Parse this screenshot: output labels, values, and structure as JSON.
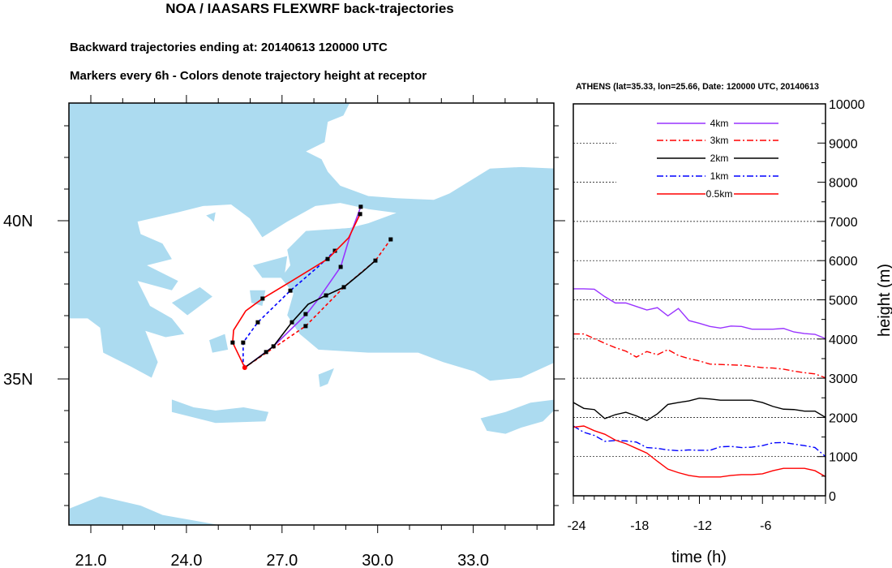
{
  "header": {
    "title": "NOA / IAASARS FLEXWRF back-trajectories",
    "subtitle1": "Backward trajectories ending at: 20140613  120000 UTC",
    "subtitle2": "Markers every 6h - Colors denote trajectory height at receptor"
  },
  "colors": {
    "land": "#acdbf0",
    "sea": "#ffffff",
    "h4km": "#9933ff",
    "h3km": "#ff0000",
    "h2km": "#000000",
    "h1km": "#0000ff",
    "h05km": "#ff0000"
  },
  "chart_data": [
    {
      "type": "map",
      "title": "Backward trajectories",
      "x_ticks": [
        "21.0",
        "24.0",
        "27.0",
        "30.0",
        "33.0"
      ],
      "x_tick_values": [
        21,
        24,
        27,
        30,
        33
      ],
      "y_ticks": [
        "35N",
        "40N"
      ],
      "y_tick_values": [
        35,
        40
      ],
      "xlim": [
        20.3,
        35.5
      ],
      "ylim": [
        30.4,
        43.7
      ],
      "receptor": [
        25.83,
        35.36
      ],
      "series": [
        {
          "name": "4km",
          "color": "#9933ff",
          "style": "solid",
          "points": [
            [
              25.83,
              35.36
            ],
            [
              26.73,
              36.03
            ],
            [
              27.77,
              37.05
            ],
            [
              28.15,
              37.54
            ],
            [
              28.84,
              38.54
            ],
            [
              29.14,
              39.54
            ],
            [
              29.47,
              40.44
            ]
          ],
          "markers": [
            [
              27.74,
              37.05
            ],
            [
              28.84,
              38.54
            ],
            [
              29.47,
              40.44
            ]
          ]
        },
        {
          "name": "3km",
          "color": "#ff0000",
          "style": "dashed",
          "points": [
            [
              25.83,
              35.36
            ],
            [
              27.74,
              36.67
            ],
            [
              28.96,
              37.92
            ],
            [
              29.93,
              38.74
            ],
            [
              30.41,
              39.41
            ]
          ],
          "markers": [
            [
              27.74,
              36.67
            ],
            [
              30.41,
              39.41
            ]
          ]
        },
        {
          "name": "2km",
          "color": "#000000",
          "style": "solid",
          "points": [
            [
              25.83,
              35.36
            ],
            [
              26.5,
              35.85
            ],
            [
              26.73,
              36.03
            ],
            [
              27.31,
              36.79
            ],
            [
              27.82,
              37.36
            ],
            [
              28.38,
              37.64
            ],
            [
              28.94,
              37.9
            ],
            [
              29.52,
              38.38
            ],
            [
              29.93,
              38.74
            ]
          ],
          "markers": [
            [
              26.5,
              35.85
            ],
            [
              26.73,
              36.03
            ],
            [
              27.31,
              36.79
            ],
            [
              28.38,
              37.64
            ],
            [
              28.94,
              37.9
            ],
            [
              29.93,
              38.74
            ]
          ]
        },
        {
          "name": "1km",
          "color": "#0000ff",
          "style": "dashed",
          "points": [
            [
              25.83,
              35.36
            ],
            [
              25.78,
              35.51
            ],
            [
              25.78,
              36.15
            ],
            [
              26.24,
              36.79
            ],
            [
              27.26,
              37.79
            ],
            [
              28.15,
              38.56
            ],
            [
              28.66,
              39.05
            ]
          ],
          "markers": [
            [
              25.78,
              36.15
            ],
            [
              26.24,
              36.79
            ],
            [
              27.26,
              37.79
            ],
            [
              28.66,
              39.05
            ]
          ]
        },
        {
          "name": "0.5km",
          "color": "#ff0000",
          "style": "solid",
          "points": [
            [
              25.83,
              35.36
            ],
            [
              25.45,
              36.15
            ],
            [
              25.48,
              36.54
            ],
            [
              25.86,
              37.15
            ],
            [
              26.39,
              37.54
            ],
            [
              27.23,
              38.05
            ],
            [
              28.43,
              38.79
            ],
            [
              29.09,
              39.46
            ],
            [
              29.45,
              40.21
            ]
          ],
          "markers": [
            [
              25.45,
              36.15
            ],
            [
              26.39,
              37.54
            ],
            [
              28.43,
              38.79
            ],
            [
              29.45,
              40.21
            ]
          ]
        }
      ]
    },
    {
      "type": "line",
      "title": "ATHENS (lat=35.33,  lon=25.66, Date: 120000 UTC, 20140613",
      "xlabel": "time (h)",
      "ylabel": "height (m)",
      "xlim": [
        -24,
        0
      ],
      "ylim": [
        0,
        10000
      ],
      "x_ticks": [
        "-24",
        "-18",
        "-12",
        "-6"
      ],
      "x_tick_values": [
        -24,
        -18,
        -12,
        -6
      ],
      "y_ticks": [
        "0",
        "1000",
        "2000",
        "3000",
        "4000",
        "5000",
        "6000",
        "7000",
        "8000",
        "9000",
        "10000"
      ],
      "y_tick_values": [
        0,
        1000,
        2000,
        3000,
        4000,
        5000,
        6000,
        7000,
        8000,
        9000,
        10000
      ],
      "grid": true,
      "legend": "top-center",
      "x": [
        -24,
        -23,
        -22,
        -21,
        -20,
        -19,
        -18,
        -17,
        -16,
        -15,
        -14,
        -13,
        -12,
        -11,
        -10,
        -9,
        -8,
        -7,
        -6,
        -5,
        -4,
        -3,
        -2,
        -1,
        0
      ],
      "series": [
        {
          "name": "4km",
          "color": "#9933ff",
          "dash": "",
          "values": [
            5280,
            5280,
            5270,
            5080,
            4920,
            4920,
            4830,
            4740,
            4800,
            4590,
            4780,
            4470,
            4400,
            4320,
            4280,
            4330,
            4320,
            4250,
            4250,
            4250,
            4270,
            4180,
            4140,
            4120,
            4010
          ]
        },
        {
          "name": "3km",
          "color": "#ff0000",
          "dash": "8 3 2 3",
          "values": [
            4130,
            4130,
            4010,
            3890,
            3780,
            3690,
            3540,
            3680,
            3600,
            3730,
            3580,
            3500,
            3440,
            3360,
            3350,
            3340,
            3330,
            3300,
            3270,
            3260,
            3230,
            3180,
            3140,
            3110,
            3010
          ]
        },
        {
          "name": "2km",
          "color": "#000000",
          "dash": "",
          "values": [
            2380,
            2230,
            2200,
            1970,
            2070,
            2130,
            2040,
            1920,
            2090,
            2330,
            2380,
            2420,
            2490,
            2470,
            2440,
            2440,
            2440,
            2440,
            2380,
            2280,
            2210,
            2200,
            2160,
            2160,
            2000
          ]
        },
        {
          "name": "1km",
          "color": "#0000ff",
          "dash": "8 3 2 3",
          "values": [
            1780,
            1620,
            1540,
            1390,
            1410,
            1400,
            1370,
            1230,
            1210,
            1170,
            1150,
            1170,
            1160,
            1160,
            1250,
            1260,
            1230,
            1240,
            1280,
            1350,
            1360,
            1320,
            1280,
            1230,
            1000
          ]
        },
        {
          "name": "0.5km",
          "color": "#ff0000",
          "dash": "",
          "values": [
            1750,
            1780,
            1660,
            1570,
            1420,
            1330,
            1210,
            1090,
            880,
            680,
            590,
            520,
            480,
            480,
            480,
            520,
            540,
            540,
            560,
            640,
            700,
            700,
            700,
            640,
            490
          ]
        }
      ]
    }
  ]
}
